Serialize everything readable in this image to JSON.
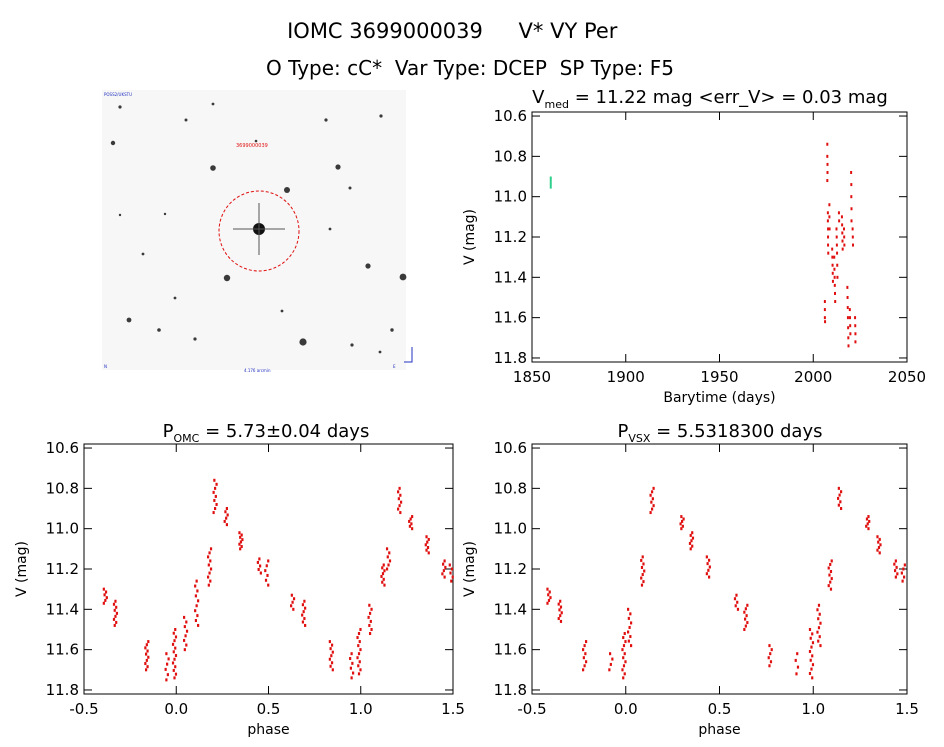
{
  "header": {
    "title_id": "IOMC 3699000039",
    "title_name": "V* VY Per",
    "subtitle": "O Type: cC*  Var Type: DCEP  SP Type: F5"
  },
  "image_panel": {
    "label_top_left": "POSS2/UKSTU",
    "label_target": "3699000039",
    "label_bottom_left": "N",
    "label_bottom_center": "4.176 arcmin",
    "label_bottom_right": "E"
  },
  "colors": {
    "points": "#e01010",
    "marker": "#2ecf8a",
    "circle": "#e01010",
    "axis": "#000000"
  },
  "chart_data": [
    {
      "id": "lightcurve",
      "type": "scatter",
      "title_prefix": "V",
      "title_sub": "med",
      "title_rest": " = 11.22 mag <err_V> = 0.03 mag",
      "xlabel": "Barytime (days)",
      "ylabel": "V (mag)",
      "xlim": [
        1850,
        2050
      ],
      "ylim": [
        11.82,
        10.58
      ],
      "xticks": [
        1850,
        1900,
        1950,
        2000,
        2050
      ],
      "yticks": [
        10.6,
        10.8,
        11.0,
        11.2,
        11.4,
        11.6,
        11.8
      ],
      "error_marker": {
        "x": 1860,
        "y_low": 10.9,
        "y_high": 10.96
      },
      "points": [
        [
          2006.2,
          11.52
        ],
        [
          2006.2,
          11.56
        ],
        [
          2006.2,
          11.6
        ],
        [
          2006.3,
          11.62
        ],
        [
          2007.5,
          10.74
        ],
        [
          2007.5,
          10.8
        ],
        [
          2007.6,
          10.84
        ],
        [
          2007.6,
          10.88
        ],
        [
          2007.5,
          10.92
        ],
        [
          2007.8,
          11.08
        ],
        [
          2007.8,
          11.12
        ],
        [
          2007.9,
          11.16
        ],
        [
          2007.9,
          11.2
        ],
        [
          2007.9,
          11.24
        ],
        [
          2008.0,
          11.28
        ],
        [
          2008.6,
          11.04
        ],
        [
          2008.6,
          11.1
        ],
        [
          2008.7,
          11.16
        ],
        [
          2010.1,
          11.26
        ],
        [
          2010.2,
          11.3
        ],
        [
          2010.3,
          11.34
        ],
        [
          2010.4,
          11.38
        ],
        [
          2010.5,
          11.42
        ],
        [
          2011.2,
          11.3
        ],
        [
          2011.3,
          11.36
        ],
        [
          2011.4,
          11.4
        ],
        [
          2011.5,
          11.44
        ],
        [
          2011.6,
          11.48
        ],
        [
          2011.7,
          11.52
        ],
        [
          2012.4,
          11.16
        ],
        [
          2012.5,
          11.2
        ],
        [
          2012.6,
          11.24
        ],
        [
          2012.7,
          11.28
        ],
        [
          2012.8,
          11.34
        ],
        [
          2012.9,
          11.4
        ],
        [
          2013.7,
          11.08
        ],
        [
          2013.8,
          11.12
        ],
        [
          2015.3,
          11.1
        ],
        [
          2015.4,
          11.14
        ],
        [
          2015.5,
          11.18
        ],
        [
          2015.6,
          11.22
        ],
        [
          2015.7,
          11.26
        ],
        [
          2016.4,
          11.16
        ],
        [
          2016.5,
          11.2
        ],
        [
          2016.6,
          11.24
        ],
        [
          2018.2,
          11.45
        ],
        [
          2018.3,
          11.5
        ],
        [
          2018.4,
          11.55
        ],
        [
          2018.5,
          11.6
        ],
        [
          2018.6,
          11.65
        ],
        [
          2018.7,
          11.7
        ],
        [
          2018.8,
          11.74
        ],
        [
          2019.5,
          11.56
        ],
        [
          2019.6,
          11.6
        ],
        [
          2019.7,
          11.64
        ],
        [
          2019.8,
          11.68
        ],
        [
          2020.2,
          10.88
        ],
        [
          2020.3,
          10.94
        ],
        [
          2020.3,
          11.0
        ],
        [
          2020.4,
          11.06
        ],
        [
          2020.4,
          11.12
        ],
        [
          2021.0,
          11.16
        ],
        [
          2021.1,
          11.2
        ],
        [
          2021.2,
          11.24
        ],
        [
          2022.3,
          11.6
        ],
        [
          2022.4,
          11.64
        ],
        [
          2022.5,
          11.68
        ],
        [
          2022.5,
          11.72
        ]
      ]
    },
    {
      "id": "fold_omc",
      "type": "scatter",
      "title_prefix": "P",
      "title_sub": "OMC",
      "title_rest": " = 5.73±0.04 days",
      "xlabel": "phase",
      "ylabel": "V (mag)",
      "xlim": [
        -0.5,
        1.5
      ],
      "ylim": [
        11.82,
        10.58
      ],
      "xticks": [
        -0.5,
        0.0,
        0.5,
        1.0,
        1.5
      ],
      "yticks": [
        10.6,
        10.8,
        11.0,
        11.2,
        11.4,
        11.6,
        11.8
      ],
      "clusters": [
        {
          "x": -0.385,
          "y0": 11.3,
          "y1": 11.37,
          "n": 6
        },
        {
          "x": -0.33,
          "y0": 11.36,
          "y1": 11.48,
          "n": 9
        },
        {
          "x": -0.16,
          "y0": 11.56,
          "y1": 11.7,
          "n": 10
        },
        {
          "x": -0.05,
          "y0": 11.62,
          "y1": 11.75,
          "n": 6
        },
        {
          "x": -0.01,
          "y0": 11.5,
          "y1": 11.74,
          "n": 14
        },
        {
          "x": 0.05,
          "y0": 11.44,
          "y1": 11.6,
          "n": 8
        },
        {
          "x": 0.11,
          "y0": 11.26,
          "y1": 11.48,
          "n": 10
        },
        {
          "x": 0.18,
          "y0": 11.1,
          "y1": 11.28,
          "n": 10
        },
        {
          "x": 0.21,
          "y0": 10.76,
          "y1": 10.92,
          "n": 9
        },
        {
          "x": 0.27,
          "y0": 10.9,
          "y1": 10.98,
          "n": 6
        },
        {
          "x": 0.35,
          "y0": 11.02,
          "y1": 11.1,
          "n": 8
        },
        {
          "x": 0.45,
          "y0": 11.15,
          "y1": 11.22,
          "n": 5
        },
        {
          "x": 0.49,
          "y0": 11.16,
          "y1": 11.28,
          "n": 6
        },
        {
          "x": 0.63,
          "y0": 11.33,
          "y1": 11.4,
          "n": 5
        },
        {
          "x": 0.69,
          "y0": 11.36,
          "y1": 11.48,
          "n": 8
        },
        {
          "x": 0.84,
          "y0": 11.56,
          "y1": 11.7,
          "n": 9
        },
        {
          "x": 0.95,
          "y0": 11.62,
          "y1": 11.74,
          "n": 6
        },
        {
          "x": 0.99,
          "y0": 11.5,
          "y1": 11.72,
          "n": 12
        },
        {
          "x": 1.05,
          "y0": 11.38,
          "y1": 11.52,
          "n": 8
        },
        {
          "x": 1.12,
          "y0": 11.18,
          "y1": 11.28,
          "n": 8
        },
        {
          "x": 1.15,
          "y0": 11.1,
          "y1": 11.2,
          "n": 6
        },
        {
          "x": 1.21,
          "y0": 10.8,
          "y1": 10.92,
          "n": 8
        },
        {
          "x": 1.27,
          "y0": 10.94,
          "y1": 11.0,
          "n": 6
        },
        {
          "x": 1.36,
          "y0": 11.04,
          "y1": 11.12,
          "n": 7
        },
        {
          "x": 1.45,
          "y0": 11.16,
          "y1": 11.24,
          "n": 6
        },
        {
          "x": 1.49,
          "y0": 11.18,
          "y1": 11.26,
          "n": 5
        }
      ]
    },
    {
      "id": "fold_vsx",
      "type": "scatter",
      "title_prefix": "P",
      "title_sub": "VSX",
      "title_rest": " = 5.5318300 days",
      "xlabel": "phase",
      "ylabel": "V (mag)",
      "xlim": [
        -0.5,
        1.5
      ],
      "ylim": [
        11.82,
        10.58
      ],
      "xticks": [
        -0.5,
        0.0,
        0.5,
        1.0,
        1.5
      ],
      "yticks": [
        10.6,
        10.8,
        11.0,
        11.2,
        11.4,
        11.6,
        11.8
      ],
      "clusters": [
        {
          "x": -0.41,
          "y0": 11.3,
          "y1": 11.37,
          "n": 6
        },
        {
          "x": -0.35,
          "y0": 11.36,
          "y1": 11.46,
          "n": 8
        },
        {
          "x": -0.22,
          "y0": 11.56,
          "y1": 11.7,
          "n": 8
        },
        {
          "x": -0.08,
          "y0": 11.62,
          "y1": 11.7,
          "n": 4
        },
        {
          "x": -0.01,
          "y0": 11.52,
          "y1": 11.74,
          "n": 12
        },
        {
          "x": 0.02,
          "y0": 11.4,
          "y1": 11.58,
          "n": 9
        },
        {
          "x": 0.09,
          "y0": 11.14,
          "y1": 11.28,
          "n": 9
        },
        {
          "x": 0.14,
          "y0": 10.8,
          "y1": 10.92,
          "n": 8
        },
        {
          "x": 0.3,
          "y0": 10.94,
          "y1": 11.0,
          "n": 6
        },
        {
          "x": 0.35,
          "y0": 11.02,
          "y1": 11.1,
          "n": 7
        },
        {
          "x": 0.44,
          "y0": 11.14,
          "y1": 11.24,
          "n": 7
        },
        {
          "x": 0.59,
          "y0": 11.33,
          "y1": 11.4,
          "n": 5
        },
        {
          "x": 0.64,
          "y0": 11.38,
          "y1": 11.5,
          "n": 8
        },
        {
          "x": 0.77,
          "y0": 11.58,
          "y1": 11.68,
          "n": 6
        },
        {
          "x": 0.91,
          "y0": 11.62,
          "y1": 11.72,
          "n": 4
        },
        {
          "x": 0.99,
          "y0": 11.5,
          "y1": 11.74,
          "n": 12
        },
        {
          "x": 1.03,
          "y0": 11.38,
          "y1": 11.58,
          "n": 10
        },
        {
          "x": 1.09,
          "y0": 11.16,
          "y1": 11.3,
          "n": 9
        },
        {
          "x": 1.14,
          "y0": 10.8,
          "y1": 10.9,
          "n": 7
        },
        {
          "x": 1.29,
          "y0": 10.94,
          "y1": 11.0,
          "n": 6
        },
        {
          "x": 1.35,
          "y0": 11.04,
          "y1": 11.12,
          "n": 7
        },
        {
          "x": 1.44,
          "y0": 11.16,
          "y1": 11.24,
          "n": 6
        },
        {
          "x": 1.48,
          "y0": 11.18,
          "y1": 11.26,
          "n": 5
        }
      ]
    }
  ]
}
